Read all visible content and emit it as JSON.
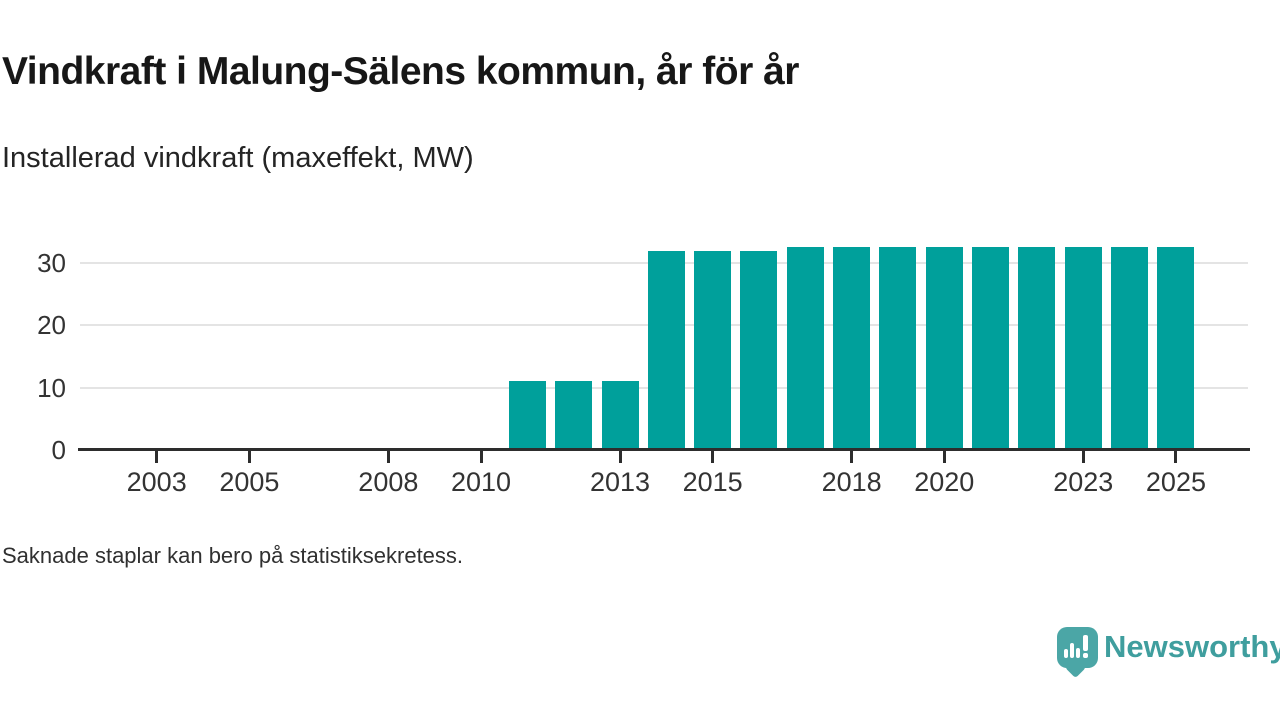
{
  "header": {
    "title": "Vindkraft i Malung-Sälens kommun, år för år",
    "subtitle": "Installerad vindkraft (maxeffekt, MW)"
  },
  "footnote": "Saknade staplar kan bero på statistiksekretess.",
  "branding": {
    "name": "Newsworthy",
    "logo_icon": "speech-bubble-bar-chart-exclamation-icon",
    "bubble_color": "#4ba6a6",
    "text_color": "#3f9e9e"
  },
  "chart_data": {
    "type": "bar",
    "title": "Vindkraft i Malung-Sälens kommun, år för år",
    "subtitle": "Installerad vindkraft (maxeffekt, MW)",
    "ylabel": "MW",
    "xlabel": "",
    "categories": [
      2002,
      2003,
      2004,
      2005,
      2006,
      2007,
      2008,
      2009,
      2010,
      2011,
      2012,
      2013,
      2014,
      2015,
      2016,
      2017,
      2018,
      2019,
      2020,
      2021,
      2022,
      2023,
      2024,
      2025
    ],
    "values": [
      null,
      null,
      null,
      null,
      null,
      null,
      null,
      null,
      null,
      11,
      11,
      11,
      32,
      32,
      32,
      32.5,
      32.5,
      32.5,
      32.5,
      32.5,
      32.5,
      32.5,
      32.5,
      32.5
    ],
    "x_tick_labels": [
      2003,
      2005,
      2008,
      2010,
      2013,
      2015,
      2018,
      2020,
      2023,
      2025
    ],
    "y_ticks": [
      0,
      10,
      20,
      30
    ],
    "ylim": [
      0,
      34.5
    ],
    "xlim": [
      2001.3,
      2026.6
    ],
    "grid": true,
    "legend": false,
    "bar_color": "#00a09b",
    "grid_color": "#e4e4e4",
    "axis_color": "#2d2d2d",
    "tick_label_color": "#333333"
  }
}
